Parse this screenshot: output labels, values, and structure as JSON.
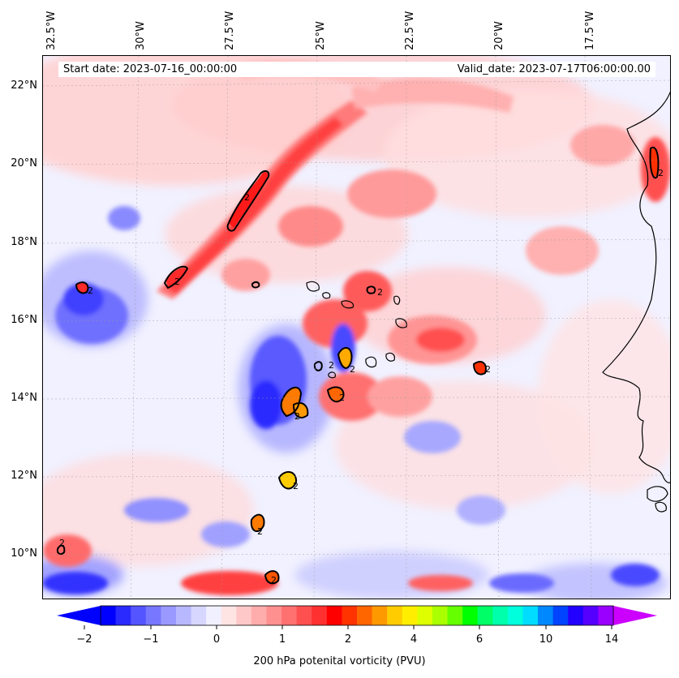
{
  "header": {
    "start_date": "Start date: 2023-07-16_00:00:00",
    "valid_date": "Valid_date: 2023-07-17T06:00:00.00"
  },
  "lon_labels": [
    "32.5°W",
    "30°W",
    "27.5°W",
    "25°W",
    "22.5°W",
    "20°W",
    "17.5°W"
  ],
  "lat_labels": [
    "22°N",
    "20°N",
    "18°N",
    "16°N",
    "14°N",
    "12°N",
    "10°N"
  ],
  "colorbar": {
    "label": "200 hPa potenital vorticity (PVU)",
    "ticks": [
      "−2",
      "−1",
      "0",
      "1",
      "2",
      "4",
      "6",
      "10",
      "14"
    ],
    "colors": [
      "#0000ff",
      "#2a2aff",
      "#5555ff",
      "#7777ff",
      "#9999ff",
      "#b8b8ff",
      "#d6d6ff",
      "#f0f0ff",
      "#ffe4e4",
      "#ffc8c8",
      "#ffacac",
      "#ff9090",
      "#ff7070",
      "#ff5050",
      "#ff3030",
      "#ff0000",
      "#ff3300",
      "#ff6600",
      "#ff9900",
      "#ffcc00",
      "#ffee00",
      "#ddff00",
      "#aaff00",
      "#66ff00",
      "#00ff00",
      "#00ff66",
      "#00ffaa",
      "#00ffdd",
      "#00ddff",
      "#0088ff",
      "#0044ff",
      "#2200ff",
      "#5500ff",
      "#9900ff"
    ],
    "under_color": "#0000ff",
    "over_color": "#cc00ff"
  },
  "contour_label": "2"
}
